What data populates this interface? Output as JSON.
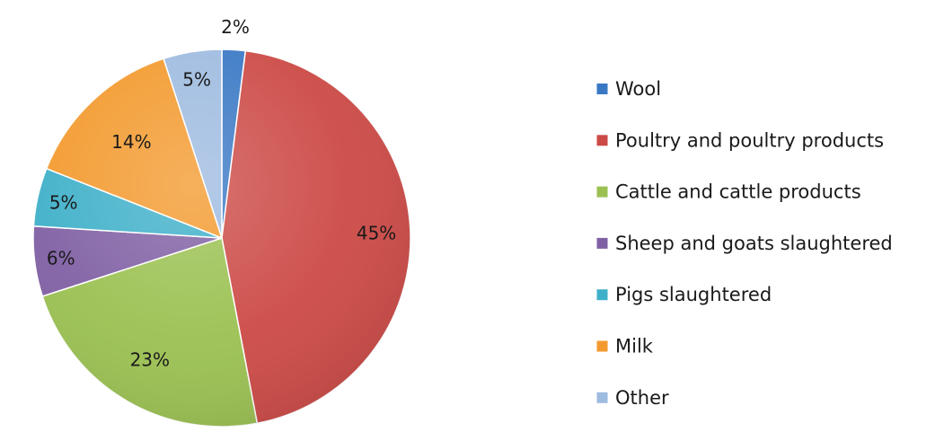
{
  "chart_data": {
    "type": "pie",
    "title": "",
    "legend_position": "right",
    "slices": [
      {
        "label": "Wool",
        "value": 2,
        "display": "2%",
        "color": "#3a78c4"
      },
      {
        "label": "Poultry and poultry products",
        "value": 45,
        "display": "45%",
        "color": "#cc4a46"
      },
      {
        "label": "Cattle and cattle products",
        "value": 23,
        "display": "23%",
        "color": "#9bc152"
      },
      {
        "label": "Sheep and goats slaughtered",
        "value": 6,
        "display": "6%",
        "color": "#8060a4"
      },
      {
        "label": "Pigs slaughtered",
        "value": 5,
        "display": "5%",
        "color": "#3fb0c9"
      },
      {
        "label": "Milk",
        "value": 14,
        "display": "14%",
        "color": "#f39a2e"
      },
      {
        "label": "Other",
        "value": 5,
        "display": "5%",
        "color": "#9ebbe0"
      }
    ]
  }
}
